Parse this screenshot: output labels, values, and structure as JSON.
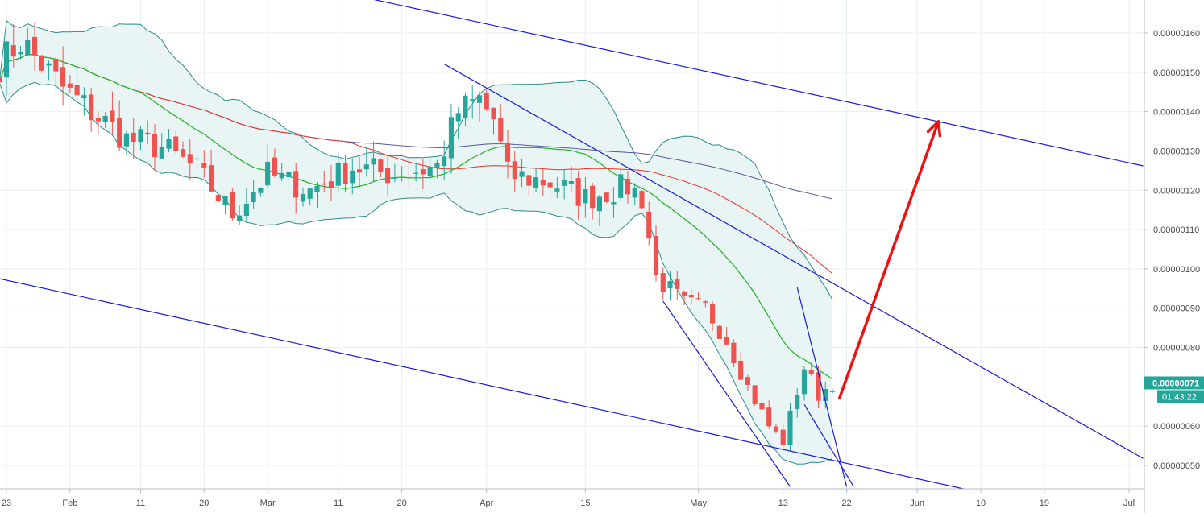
{
  "chart_data": {
    "type": "candlestick",
    "title": "",
    "xlabel": "",
    "ylabel": "",
    "ylim": [
      4.4e-07,
      1.66e-06
    ],
    "y_scale": "linear",
    "grid": true,
    "legend": "none",
    "x_tick_labels": [
      {
        "date": "2019-01-23",
        "label": "23"
      },
      {
        "date": "2019-02-01",
        "label": "Feb"
      },
      {
        "date": "2019-02-11",
        "label": "11"
      },
      {
        "date": "2019-02-20",
        "label": "20"
      },
      {
        "date": "2019-03-01",
        "label": "Mar"
      },
      {
        "date": "2019-03-11",
        "label": "11"
      },
      {
        "date": "2019-03-20",
        "label": "20"
      },
      {
        "date": "2019-04-01",
        "label": "Apr"
      },
      {
        "date": "2019-04-15",
        "label": "15"
      },
      {
        "date": "2019-05-01",
        "label": "May"
      },
      {
        "date": "2019-05-13",
        "label": "13"
      },
      {
        "date": "2019-05-22",
        "label": "22"
      },
      {
        "date": "2019-06-01",
        "label": "Jun"
      },
      {
        "date": "2019-06-10",
        "label": "10"
      },
      {
        "date": "2019-06-19",
        "label": "19"
      },
      {
        "date": "2019-07-01",
        "label": "Jul"
      }
    ],
    "y_tick_labels": [
      {
        "value": 1.6e-06,
        "label": "0.00000160"
      },
      {
        "value": 1.5e-06,
        "label": "0.00000150"
      },
      {
        "value": 1.4e-06,
        "label": "0.00000140"
      },
      {
        "value": 1.3e-06,
        "label": "0.00000130"
      },
      {
        "value": 1.2e-06,
        "label": "0.00000120"
      },
      {
        "value": 1.1e-06,
        "label": "0.00000110"
      },
      {
        "value": 1e-06,
        "label": "0.00000100"
      },
      {
        "value": 9e-07,
        "label": "0.00000090"
      },
      {
        "value": 8e-07,
        "label": "0.00000080"
      },
      {
        "value": 6e-07,
        "label": "0.00000060"
      },
      {
        "value": 5e-07,
        "label": "0.00000050"
      }
    ],
    "current_price": {
      "value": 7.1e-07,
      "label": "0.00000071",
      "countdown": "01:43:22"
    },
    "price_anchors": [
      {
        "date": "2019-01-22",
        "close": 1.52e-06
      },
      {
        "date": "2019-01-25",
        "close": 1.58e-06
      },
      {
        "date": "2019-01-31",
        "close": 1.46e-06
      },
      {
        "date": "2019-02-04",
        "close": 1.4e-06
      },
      {
        "date": "2019-02-09",
        "close": 1.33e-06
      },
      {
        "date": "2019-02-14",
        "close": 1.31e-06
      },
      {
        "date": "2019-02-19",
        "close": 1.25e-06
      },
      {
        "date": "2019-02-24",
        "close": 1.14e-06
      },
      {
        "date": "2019-03-01",
        "close": 1.24e-06
      },
      {
        "date": "2019-03-07",
        "close": 1.2e-06
      },
      {
        "date": "2019-03-13",
        "close": 1.26e-06
      },
      {
        "date": "2019-03-19",
        "close": 1.24e-06
      },
      {
        "date": "2019-03-25",
        "close": 1.26e-06
      },
      {
        "date": "2019-03-28",
        "close": 1.4e-06
      },
      {
        "date": "2019-03-31",
        "close": 1.43e-06
      },
      {
        "date": "2019-04-02",
        "close": 1.38e-06
      },
      {
        "date": "2019-04-04",
        "close": 1.24e-06
      },
      {
        "date": "2019-04-10",
        "close": 1.22e-06
      },
      {
        "date": "2019-04-15",
        "close": 1.18e-06
      },
      {
        "date": "2019-04-21",
        "close": 1.21e-06
      },
      {
        "date": "2019-04-23",
        "close": 1.18e-06
      },
      {
        "date": "2019-04-25",
        "close": 9.8e-07
      },
      {
        "date": "2019-04-29",
        "close": 9.1e-07
      },
      {
        "date": "2019-05-02",
        "close": 9e-07
      },
      {
        "date": "2019-05-05",
        "close": 8.2e-07
      },
      {
        "date": "2019-05-08",
        "close": 7e-07
      },
      {
        "date": "2019-05-11",
        "close": 6e-07
      },
      {
        "date": "2019-05-13",
        "close": 5.6e-07
      },
      {
        "date": "2019-05-15",
        "close": 6.9e-07
      },
      {
        "date": "2019-05-16",
        "close": 7.5e-07
      },
      {
        "date": "2019-05-18",
        "close": 6.8e-07
      },
      {
        "date": "2019-05-20",
        "close": 7.1e-07
      }
    ],
    "overlays": {
      "ma_green_color": "#21b321",
      "ma_red_color": "#e8332b",
      "ma_slow_color": "#5a5a9f",
      "bollinger_band_color": "#2e8b8b",
      "bollinger_fill_color": "#e6f4f3"
    },
    "drawings": [
      {
        "kind": "trendline",
        "color": "#1a1adb",
        "from": {
          "date": "2019-03-05",
          "price": 1.728e-06
        },
        "to": {
          "date": "2019-07-03",
          "price": 1.262e-06
        }
      },
      {
        "kind": "trendline",
        "color": "#1a1adb",
        "from": {
          "date": "2019-01-22",
          "price": 9.75e-07
        },
        "to": {
          "date": "2019-06-09",
          "price": 4.35e-07
        }
      },
      {
        "kind": "trendline",
        "color": "#1a1adb",
        "from": {
          "date": "2019-03-26",
          "price": 1.521e-06
        },
        "to": {
          "date": "2019-07-03",
          "price": 5.18e-07
        }
      },
      {
        "kind": "trendline",
        "color": "#1a1adb",
        "from": {
          "date": "2019-04-26",
          "price": 9.18e-07
        },
        "to": {
          "date": "2019-05-14",
          "price": 4.46e-07
        }
      },
      {
        "kind": "trendline",
        "color": "#1a1adb",
        "from": {
          "date": "2019-05-15",
          "price": 9.53e-07
        },
        "to": {
          "date": "2019-05-22",
          "price": 4.46e-07
        }
      },
      {
        "kind": "trendline",
        "color": "#1a1adb",
        "from": {
          "date": "2019-05-16",
          "price": 6.55e-07
        },
        "to": {
          "date": "2019-05-23",
          "price": 4.46e-07
        }
      },
      {
        "kind": "arrow",
        "color": "#ee1111",
        "from": {
          "date": "2019-05-21",
          "price": 6.72e-07
        },
        "to": {
          "date": "2019-06-04",
          "price": 1.375e-06
        }
      }
    ],
    "colors": {
      "up": "#26a69a",
      "down": "#ef5350",
      "grid": "#e9eef2",
      "axis_text": "#4a4a4a",
      "price_badge": "#26a69a",
      "dotted_price_line": "#26a69a"
    }
  }
}
